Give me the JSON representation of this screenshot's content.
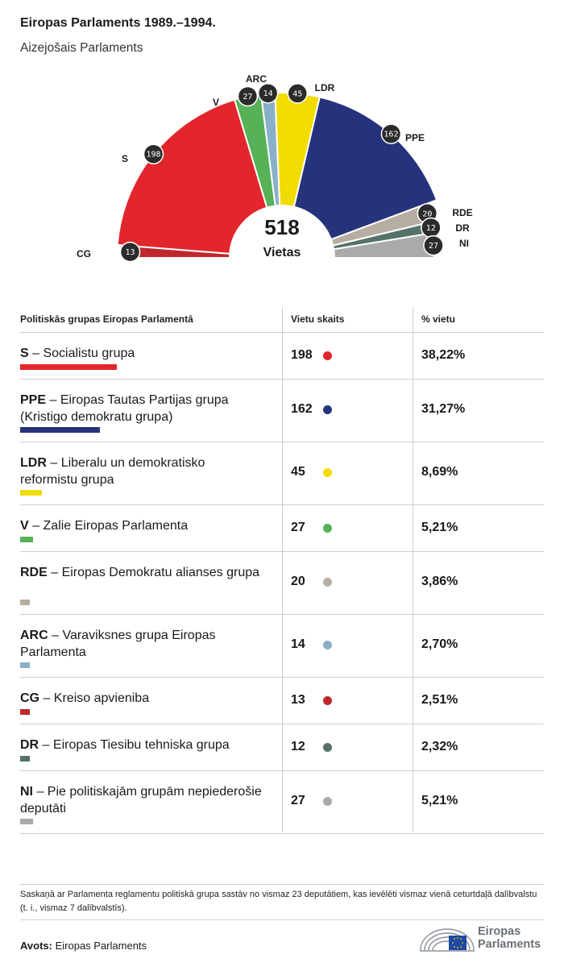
{
  "header": {
    "title": "Eiropas Parlaments 1989.–1994.",
    "subtitle": "Aizejošais Parlaments"
  },
  "chart_data": {
    "type": "pie",
    "layout": "hemicycle",
    "total": "518",
    "total_label": "Vietas",
    "series": [
      {
        "label": "CG",
        "value": 13,
        "color": "#c0272d"
      },
      {
        "label": "S",
        "value": 198,
        "color": "#e3262b"
      },
      {
        "label": "V",
        "value": 27,
        "color": "#56b157"
      },
      {
        "label": "ARC",
        "value": 14,
        "color": "#8aafc8"
      },
      {
        "label": "LDR",
        "value": 45,
        "color": "#f1dc00"
      },
      {
        "label": "PPE",
        "value": 162,
        "color": "#26337c"
      },
      {
        "label": "RDE",
        "value": 20,
        "color": "#b7aea2"
      },
      {
        "label": "DR",
        "value": 12,
        "color": "#55726a"
      },
      {
        "label": "NI",
        "value": 27,
        "color": "#aaaaaa"
      }
    ]
  },
  "table": {
    "headers": [
      "Politiskās grupas Eiropas Parlamentā",
      "Vietu skaits",
      "% vietu"
    ],
    "rows": [
      {
        "abbr": "S",
        "name": "Socialistu grupa",
        "seats": "198",
        "pct": "38,22%",
        "color": "#e3262b",
        "share": 0.3822
      },
      {
        "abbr": "PPE",
        "name": "Eiropas Tautas Partijas grupa (Kristigo demokratu grupa)",
        "seats": "162",
        "pct": "31,27%",
        "color": "#26337c",
        "share": 0.3127
      },
      {
        "abbr": "LDR",
        "name": "Liberalu un demokratisko reformistu grupa",
        "seats": "45",
        "pct": "8,69%",
        "color": "#f1dc00",
        "share": 0.0869
      },
      {
        "abbr": "V",
        "name": "Zalie Eiropas Parlamenta",
        "seats": "27",
        "pct": "5,21%",
        "color": "#56b157",
        "share": 0.0521
      },
      {
        "abbr": "RDE",
        "name": "Eiropas Demokratu alianses grupa",
        "seats": "20",
        "pct": "3,86%",
        "color": "#b7aea2",
        "share": 0.0386
      },
      {
        "abbr": "ARC",
        "name": "Varaviksnes grupa Eiropas Parlamenta",
        "seats": "14",
        "pct": "2,70%",
        "color": "#8aafc8",
        "share": 0.027
      },
      {
        "abbr": "CG",
        "name": "Kreiso apvieniba",
        "seats": "13",
        "pct": "2,51%",
        "color": "#c0272d",
        "share": 0.0251
      },
      {
        "abbr": "DR",
        "name": "Eiropas Tiesibu tehniska grupa",
        "seats": "12",
        "pct": "2,32%",
        "color": "#55726a",
        "share": 0.0232
      },
      {
        "abbr": "NI",
        "name": "Pie politiskajām grupām nepiederošie deputāti",
        "seats": "27",
        "pct": "5,21%",
        "color": "#aaaaaa",
        "share": 0.0521
      }
    ]
  },
  "note": "Saskaņā ar Parlamenta reglamentu politiskā grupa sastāv no vismaz 23 deputātiem, kas ievēlēti vismaz vienā ceturtdaļā dalībvalstu (t. i., vismaz 7 dalībvalstīs).",
  "source": {
    "label": "Avots:",
    "value": "Eiropas Parlaments"
  },
  "logo": {
    "line1": "Eiropas",
    "line2": "Parlaments"
  }
}
